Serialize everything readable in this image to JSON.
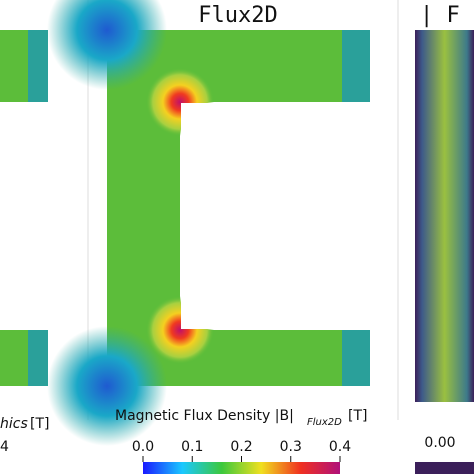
{
  "left": {
    "colorbar_label": "hics",
    "colorbar_unit": "[T]",
    "tick": "4"
  },
  "center": {
    "title": "Flux2D",
    "colorbar_label": "Magnetic Flux Density |B|",
    "colorbar_subscript": "Flux2D",
    "colorbar_unit": "[T]",
    "ticks": [
      "0.0",
      "0.1",
      "0.2",
      "0.3",
      "0.4"
    ]
  },
  "right": {
    "title": "| F",
    "tick": "0.00"
  }
}
